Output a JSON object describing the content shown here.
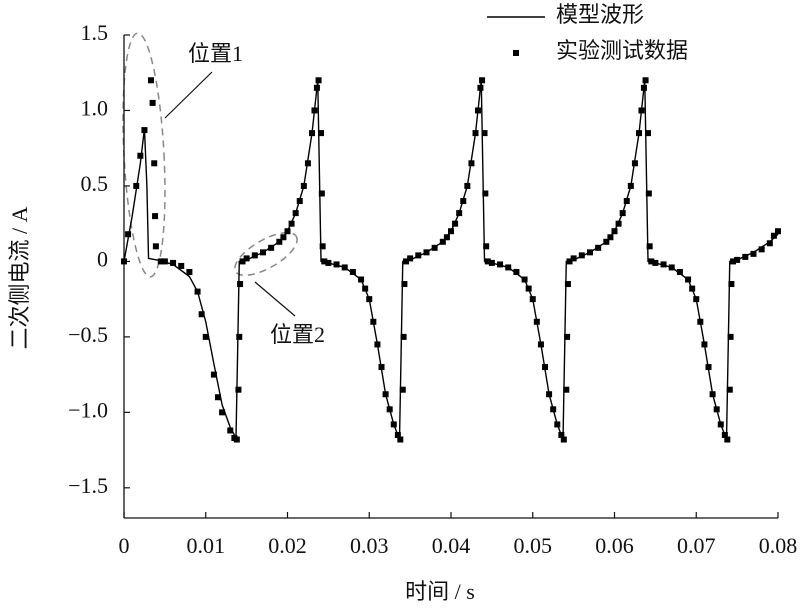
{
  "chart_data": {
    "type": "line",
    "x_label": "时间 / s",
    "y_label": "二次侧电流 / A",
    "xlim": [
      0,
      0.08
    ],
    "ylim": [
      -1.7,
      1.5
    ],
    "xticks": [
      0,
      0.01,
      0.02,
      0.03,
      0.04,
      0.05,
      0.06,
      0.07,
      0.08
    ],
    "yticks": [
      {
        "value": -1.5,
        "label": "−1.5"
      },
      {
        "value": -1,
        "label": "−1.0"
      },
      {
        "value": -0.5,
        "label": "−0.5"
      },
      0,
      0.5,
      {
        "value": 1,
        "label": "1.0"
      },
      1.5
    ],
    "annotations": [
      "位置1",
      "位置2"
    ],
    "legend": "top-right",
    "series": [
      {
        "name": "模型波形",
        "type": "line",
        "color": "#000000",
        "x": [
          0,
          0.001,
          0.002,
          0.0025,
          0.0028,
          0.003,
          0.004,
          0.006,
          0.008,
          0.009,
          0.01,
          0.011,
          0.012,
          0.013,
          0.0137,
          0.0139,
          0.0141,
          0.015,
          0.017,
          0.019,
          0.02,
          0.021,
          0.022,
          0.023,
          0.0237,
          0.0239,
          0.0241,
          0.025,
          0.027,
          0.029,
          0.03,
          0.031,
          0.032,
          0.033,
          0.0337,
          0.0339,
          0.0341,
          0.035,
          0.037,
          0.039,
          0.04,
          0.041,
          0.042,
          0.043,
          0.0437,
          0.0439,
          0.0441,
          0.045,
          0.047,
          0.049,
          0.05,
          0.051,
          0.052,
          0.053,
          0.0537,
          0.0539,
          0.0541,
          0.055,
          0.057,
          0.059,
          0.06,
          0.061,
          0.062,
          0.063,
          0.0637,
          0.0639,
          0.0641,
          0.065,
          0.067,
          0.069,
          0.07,
          0.071,
          0.072,
          0.073,
          0.0737,
          0.0739,
          0.0741,
          0.075,
          0.077,
          0.079,
          0.08
        ],
        "values": [
          0,
          0.3,
          0.65,
          0.88,
          0.5,
          0.02,
          0.01,
          -0.02,
          -0.1,
          -0.2,
          -0.4,
          -0.68,
          -0.95,
          -1.1,
          -1.17,
          -0.6,
          0,
          0.01,
          0.06,
          0.13,
          0.2,
          0.32,
          0.5,
          0.85,
          1.2,
          0.6,
          0,
          -0.01,
          -0.04,
          -0.12,
          -0.25,
          -0.55,
          -0.88,
          -1.08,
          -1.18,
          -0.6,
          0,
          0.01,
          0.06,
          0.13,
          0.2,
          0.32,
          0.5,
          0.85,
          1.2,
          0.6,
          0,
          -0.01,
          -0.04,
          -0.12,
          -0.25,
          -0.55,
          -0.88,
          -1.08,
          -1.18,
          -0.6,
          0,
          0.01,
          0.06,
          0.13,
          0.2,
          0.32,
          0.5,
          0.85,
          1.2,
          0.6,
          0,
          -0.01,
          -0.04,
          -0.12,
          -0.25,
          -0.55,
          -0.88,
          -1.08,
          -1.18,
          -0.6,
          0,
          0.01,
          0.06,
          0.13,
          0.18
        ]
      },
      {
        "name": "实验测试数据",
        "type": "scatter",
        "color": "#000000",
        "x": [
          0,
          0.0005,
          0.0015,
          0.002,
          0.0025,
          0.0033,
          0.0035,
          0.0037,
          0.0038,
          0.0039,
          0.0045,
          0.005,
          0.006,
          0.007,
          0.008,
          0.009,
          0.0095,
          0.01,
          0.011,
          0.0115,
          0.012,
          0.013,
          0.0135,
          0.0138,
          0.014,
          0.0141,
          0.0142,
          0.0145,
          0.015,
          0.016,
          0.017,
          0.018,
          0.019,
          0.0195,
          0.02,
          0.0205,
          0.021,
          0.0215,
          0.022,
          0.0225,
          0.023,
          0.0233,
          0.0236,
          0.0238,
          0.0241,
          0.0242,
          0.0243,
          0.0245,
          0.025,
          0.026,
          0.027,
          0.028,
          0.029,
          0.0295,
          0.03,
          0.0305,
          0.031,
          0.0315,
          0.032,
          0.0325,
          0.033,
          0.0335,
          0.0338,
          0.0341,
          0.0342,
          0.0343,
          0.0345,
          0.035,
          0.036,
          0.037,
          0.038,
          0.039,
          0.0395,
          0.04,
          0.0405,
          0.041,
          0.0415,
          0.042,
          0.0425,
          0.043,
          0.0433,
          0.0436,
          0.0438,
          0.0441,
          0.0442,
          0.0443,
          0.0445,
          0.045,
          0.046,
          0.047,
          0.048,
          0.049,
          0.0495,
          0.05,
          0.0505,
          0.051,
          0.0515,
          0.052,
          0.0525,
          0.053,
          0.0535,
          0.0538,
          0.0541,
          0.0542,
          0.0543,
          0.0545,
          0.055,
          0.056,
          0.057,
          0.058,
          0.059,
          0.0595,
          0.06,
          0.0605,
          0.061,
          0.0615,
          0.062,
          0.0625,
          0.063,
          0.0633,
          0.0636,
          0.0638,
          0.0641,
          0.0642,
          0.0643,
          0.0645,
          0.065,
          0.066,
          0.067,
          0.068,
          0.069,
          0.0695,
          0.07,
          0.0705,
          0.071,
          0.0715,
          0.072,
          0.0725,
          0.073,
          0.0735,
          0.0738,
          0.0741,
          0.0742,
          0.0743,
          0.0745,
          0.075,
          0.076,
          0.077,
          0.078,
          0.079,
          0.0795,
          0.08
        ],
        "values": [
          0,
          0.18,
          0.5,
          0.7,
          0.87,
          1.2,
          1.05,
          0.65,
          0.3,
          0.1,
          0,
          0,
          -0.01,
          -0.03,
          -0.07,
          -0.2,
          -0.35,
          -0.5,
          -0.75,
          -0.9,
          -1,
          -1.12,
          -1.17,
          -1.18,
          -0.85,
          -0.5,
          -0.15,
          0,
          0.02,
          0.04,
          0.06,
          0.09,
          0.13,
          0.16,
          0.2,
          0.25,
          0.32,
          0.4,
          0.5,
          0.65,
          0.85,
          1,
          1.15,
          1.2,
          0.85,
          0.45,
          0.1,
          0,
          -0.01,
          -0.02,
          -0.04,
          -0.07,
          -0.12,
          -0.18,
          -0.25,
          -0.4,
          -0.55,
          -0.7,
          -0.88,
          -0.98,
          -1.08,
          -1.15,
          -1.18,
          -0.85,
          -0.5,
          -0.15,
          0,
          0.02,
          0.04,
          0.06,
          0.09,
          0.13,
          0.16,
          0.2,
          0.25,
          0.32,
          0.4,
          0.5,
          0.65,
          0.85,
          1,
          1.15,
          1.2,
          0.85,
          0.45,
          0.1,
          0,
          -0.01,
          -0.02,
          -0.04,
          -0.07,
          -0.12,
          -0.18,
          -0.25,
          -0.4,
          -0.55,
          -0.7,
          -0.88,
          -0.98,
          -1.08,
          -1.15,
          -1.18,
          -0.85,
          -0.5,
          -0.15,
          0,
          0.02,
          0.04,
          0.06,
          0.09,
          0.13,
          0.16,
          0.2,
          0.25,
          0.32,
          0.4,
          0.5,
          0.65,
          0.85,
          1,
          1.15,
          1.2,
          0.85,
          0.45,
          0.1,
          0,
          -0.01,
          -0.02,
          -0.04,
          -0.07,
          -0.12,
          -0.18,
          -0.25,
          -0.4,
          -0.55,
          -0.7,
          -0.88,
          -0.98,
          -1.08,
          -1.15,
          -1.18,
          -0.85,
          -0.5,
          -0.15,
          0,
          0.01,
          0.03,
          0.05,
          0.08,
          0.12,
          0.17,
          0.2
        ]
      }
    ]
  }
}
